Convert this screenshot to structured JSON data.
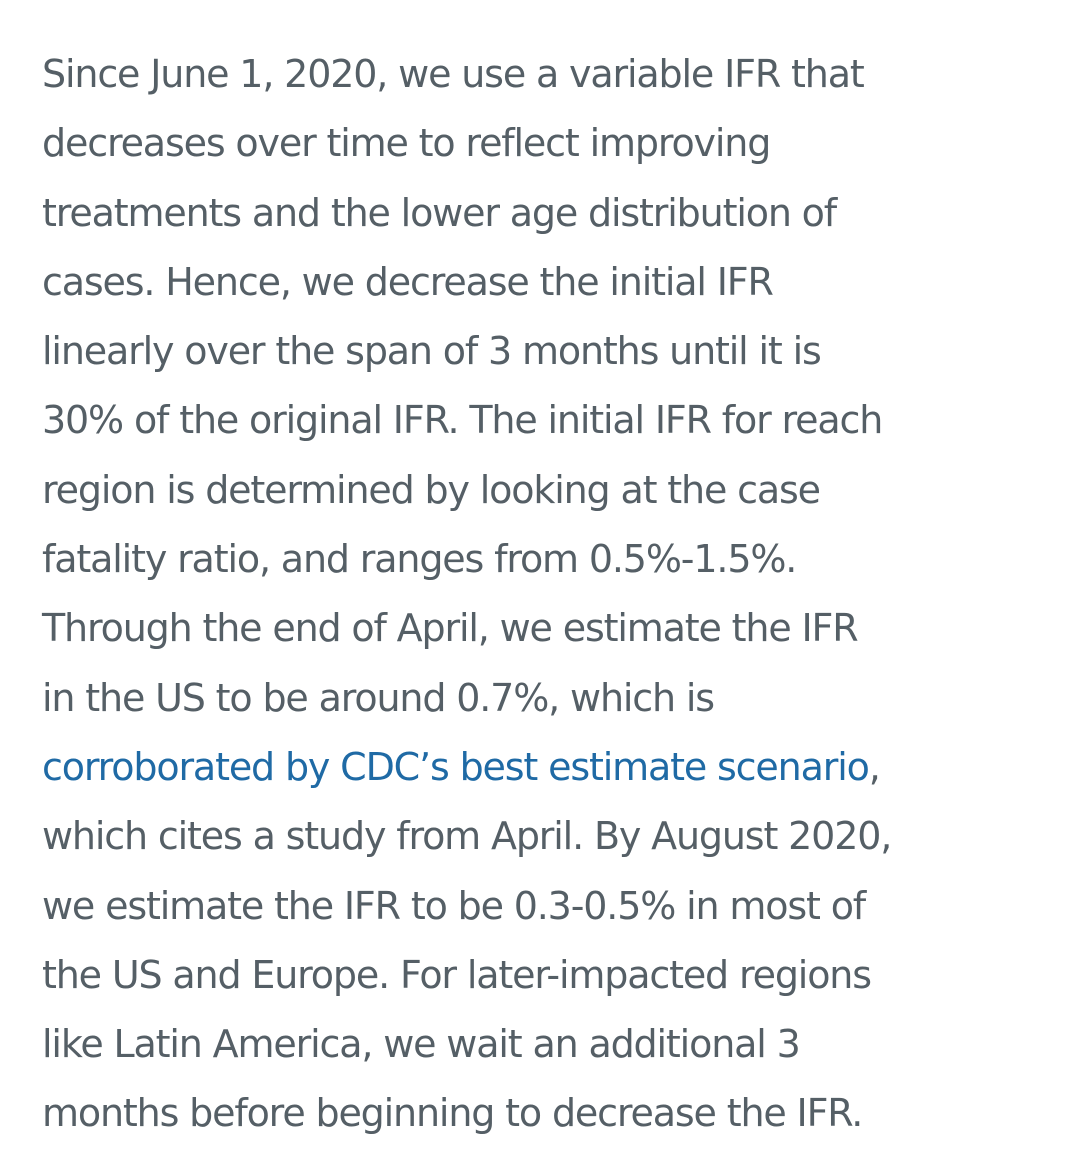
{
  "article": {
    "paragraph": {
      "lines": [
        "Since June 1, 2020, we use a variable IFR that",
        "decreases over time to reflect improving",
        "treatments and the lower age distribution of",
        "cases. Hence, we decrease the initial IFR",
        "linearly over the span of 3 months until it is",
        "30% of the original IFR. The initial IFR for reach",
        "region is determined by looking at the case",
        "fatality ratio, and ranges from 0.5%-1.5%.",
        "Through the end of April, we estimate the IFR",
        "in the US to be around 0.7%, which is"
      ],
      "link_text": "corroborated by CDC’s best estimate scenario",
      "link_suffix": ",",
      "lines_after": [
        "which cites a study from April. By August 2020,",
        "we estimate the IFR to be 0.3-0.5% in most of",
        "the US and Europe. For later-impacted regions",
        "like Latin America, we wait an additional 3",
        "months before beginning to decrease the IFR."
      ]
    },
    "colors": {
      "text": "#555f66",
      "link": "#1f6aa5",
      "background": "#ffffff"
    }
  }
}
